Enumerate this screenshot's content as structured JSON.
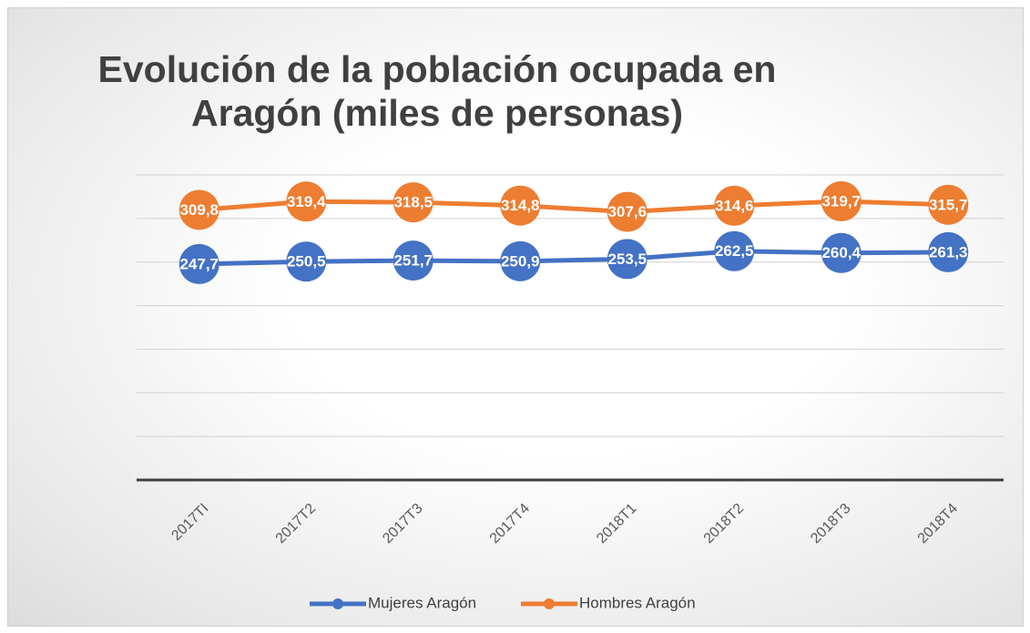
{
  "chart_data": {
    "type": "line",
    "title": "Evolución de la población ocupada en Aragón (miles de personas)",
    "categories": [
      "2017TI",
      "2017T2",
      "2017T3",
      "2017T4",
      "2018T1",
      "2018T2",
      "2018T3",
      "2018T4"
    ],
    "series": [
      {
        "name": "Mujeres Aragón",
        "color": "#4472c4",
        "values": [
          247.7,
          250.5,
          251.7,
          250.9,
          253.5,
          262.5,
          260.4,
          261.3
        ],
        "value_labels": [
          "247,7",
          "250,5",
          "251,7",
          "250,9",
          "253,5",
          "262,5",
          "260,4",
          "261,3"
        ]
      },
      {
        "name": "Hombres Aragón",
        "color": "#ed7d31",
        "values": [
          309.8,
          319.4,
          318.5,
          314.8,
          307.6,
          314.6,
          319.7,
          315.7
        ],
        "value_labels": [
          "309,8",
          "319,4",
          "318,5",
          "314,8",
          "307,6",
          "314,6",
          "319,7",
          "315,7"
        ]
      }
    ],
    "ylim": [
      0,
      350
    ],
    "yticks": [
      0,
      50,
      100,
      150,
      200,
      250,
      300,
      350
    ],
    "grid": true,
    "legend": "bottom"
  }
}
